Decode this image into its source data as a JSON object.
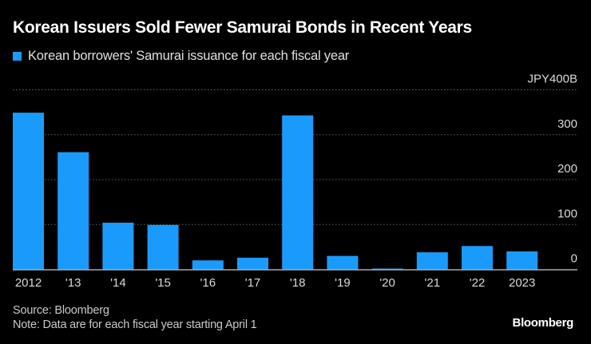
{
  "header": {
    "title": "Korean Issuers Sold Fewer Samurai Bonds in Recent Years"
  },
  "footer": {
    "source": "Source: Bloomberg",
    "note": "Note: Data are for each fiscal year starting April 1",
    "brand": "Bloomberg"
  },
  "colors": {
    "background": "#000000",
    "bar": "#1a9bfc",
    "gridline": "#666666",
    "baseline": "#aaaaaa",
    "tick_label": "#d8d8d8"
  },
  "chart_data": {
    "type": "bar",
    "title": "Korean Issuers Sold Fewer Samurai Bonds in Recent Years",
    "legend": [
      {
        "name": "Korean borrowers' Samurai issuance for each fiscal year",
        "color": "#1a9bfc"
      }
    ],
    "legend_position": "top-left",
    "xlabel": "",
    "ylabel": "",
    "y_unit_label": "JPY400B",
    "ylim": [
      0,
      400
    ],
    "yticks": [
      0,
      100,
      200,
      300,
      400
    ],
    "ytick_labels": [
      "0",
      "100",
      "200",
      "300",
      "JPY400B"
    ],
    "y_axis_side": "right",
    "grid": true,
    "categories": [
      "2012",
      "'13",
      "'14",
      "'15",
      "'16",
      "'17",
      "'18",
      "'19",
      "'20",
      "'21",
      "'22",
      "2023"
    ],
    "series": [
      {
        "name": "Korean borrowers' Samurai issuance for each fiscal year",
        "values": [
          349,
          261,
          104,
          99,
          20,
          26,
          343,
          30,
          1,
          38,
          52,
          40
        ]
      }
    ]
  }
}
